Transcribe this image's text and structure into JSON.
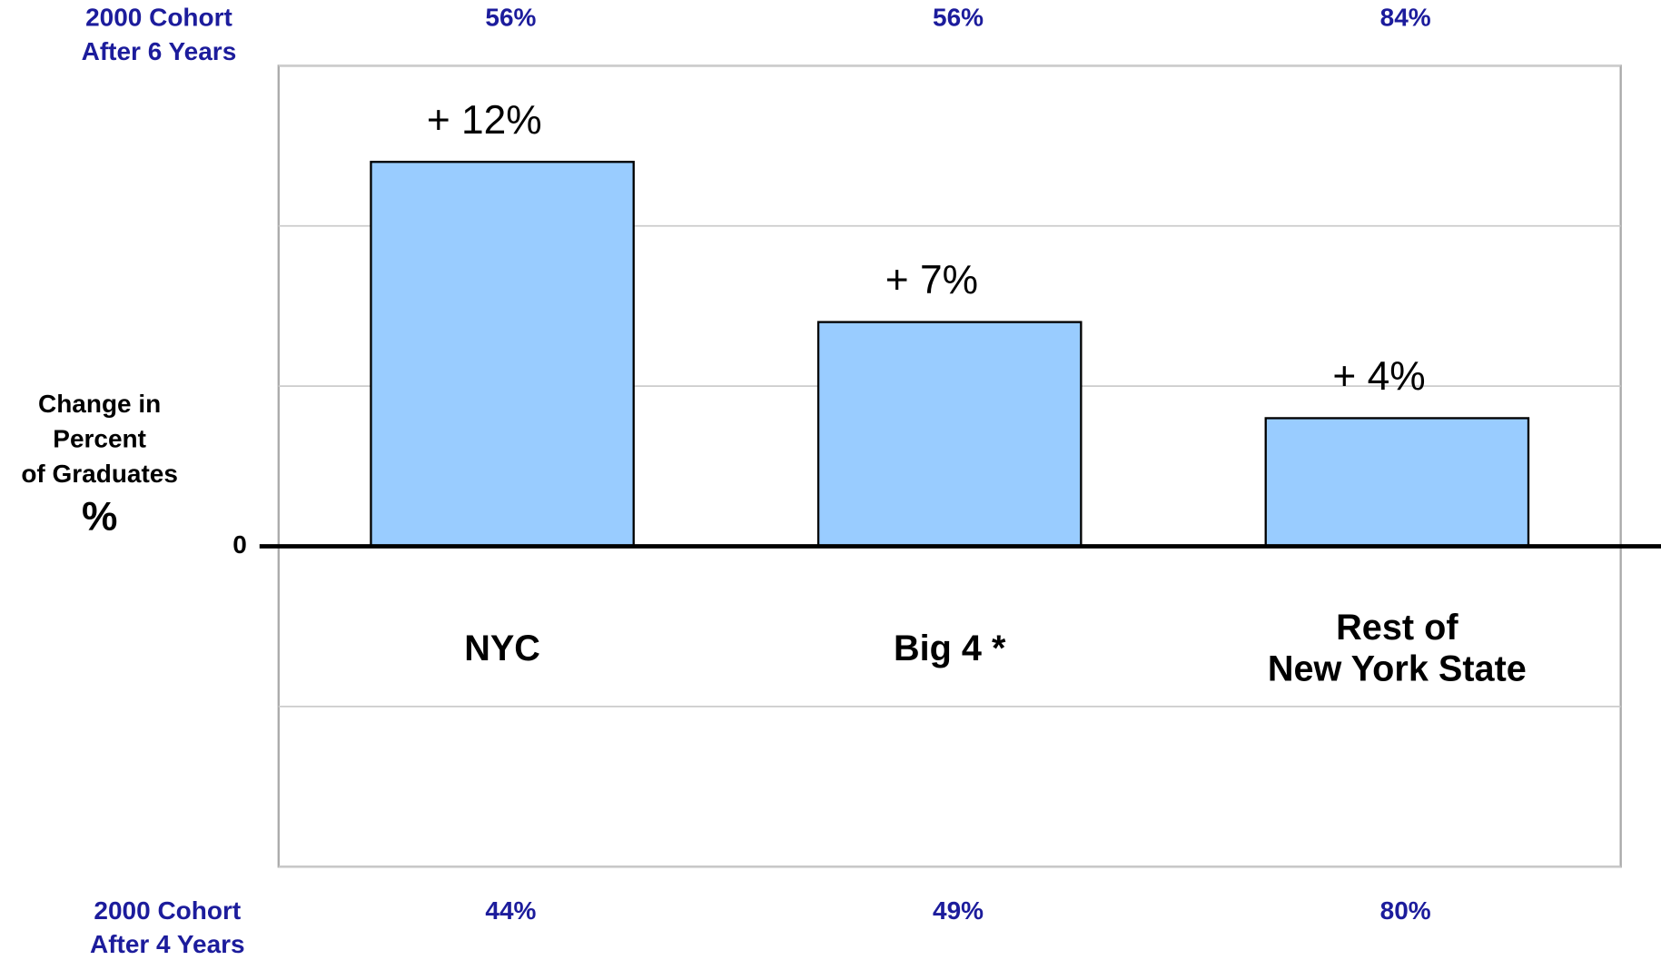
{
  "chart_data": {
    "type": "bar",
    "categories": [
      [
        "NYC"
      ],
      [
        "Big 4 *"
      ],
      [
        "Rest of",
        "New York State"
      ]
    ],
    "values": [
      12,
      7,
      4
    ],
    "value_labels": [
      "+ 12%",
      "+ 7%",
      "+ 4%"
    ],
    "color": "#99ccff",
    "ylim": [
      -10,
      15
    ],
    "yticks": [
      0
    ],
    "gridlines": [
      -10,
      -5,
      5,
      10,
      15
    ],
    "grid": true,
    "y_label": [
      "Change in",
      "Percent",
      "of Graduates",
      "%"
    ],
    "top_row": {
      "label": [
        "2000 Cohort",
        "After 6 Years"
      ],
      "values": [
        56,
        56,
        84
      ],
      "value_labels": [
        "56%",
        "56%",
        "84%"
      ],
      "color": "#1c1c9c"
    },
    "bottom_row": {
      "label": [
        "2000 Cohort",
        "After 4 Years"
      ],
      "values": [
        44,
        49,
        80
      ],
      "value_labels": [
        "44%",
        "49%",
        "80%"
      ],
      "color": "#1c1c9c"
    }
  }
}
